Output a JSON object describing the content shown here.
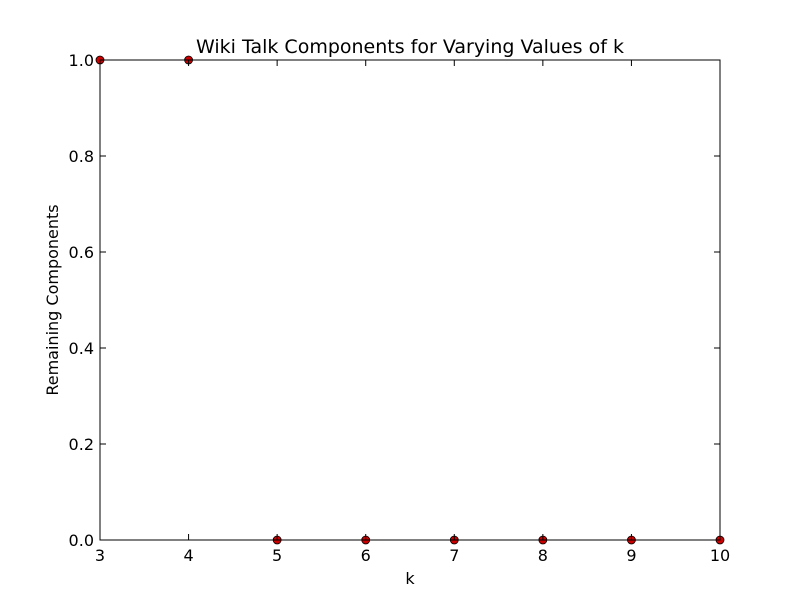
{
  "chart_data": {
    "type": "scatter",
    "title": "Wiki Talk Components for Varying Values of k",
    "xlabel": "k",
    "ylabel": "Remaining Components",
    "xlim": [
      3,
      10
    ],
    "ylim": [
      0,
      1
    ],
    "x_ticks": [
      "3",
      "4",
      "5",
      "6",
      "7",
      "8",
      "9",
      "10"
    ],
    "y_ticks": [
      "0.0",
      "0.2",
      "0.4",
      "0.6",
      "0.8",
      "1.0"
    ],
    "grid": false,
    "legend": "none",
    "point_color": "#cc0000",
    "point_edge_color": "#000000",
    "series": [
      {
        "x": [
          3,
          4,
          5,
          6,
          7,
          8,
          9,
          10
        ],
        "y": [
          1,
          1,
          0,
          0,
          0,
          0,
          0,
          0
        ]
      }
    ]
  }
}
